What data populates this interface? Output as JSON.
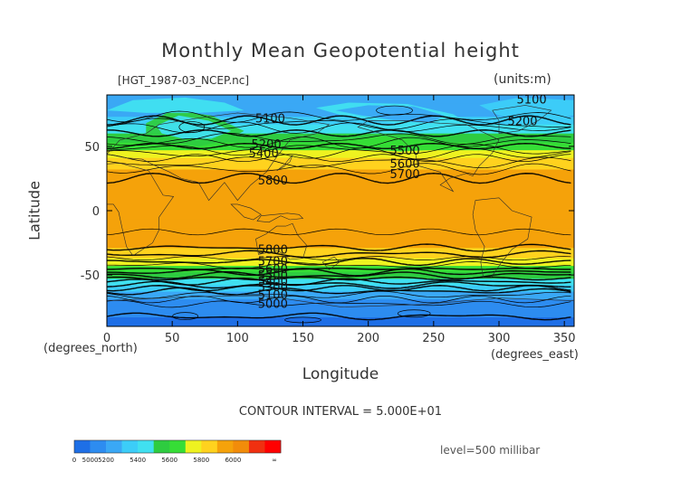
{
  "chart_data": {
    "type": "heatmap",
    "title": "Monthly Mean Geopotential height",
    "subtitle": "[HGT_1987-03_NCEP.nc]",
    "units": "(units:m)",
    "xlabel": "Longitude",
    "ylabel": "Latitude",
    "x_unit": "(degrees_east)",
    "y_unit": "(degrees_north)",
    "xlim": [
      0,
      357.5
    ],
    "ylim": [
      -90,
      90
    ],
    "xticks": [
      0,
      50,
      100,
      150,
      200,
      250,
      300,
      350
    ],
    "yticks": [
      50,
      0,
      -50
    ],
    "footer": "CONTOUR INTERVAL = 5.000E+01",
    "level": "level=500 millibar",
    "colorbar": {
      "tick_labels": [
        "0",
        "5000",
        "5200",
        "5400",
        "5600",
        "5800",
        "6000",
        "∞"
      ],
      "bands": [
        {
          "from": 0,
          "to": 5000,
          "color": "#1e6fe6"
        },
        {
          "from": 5000,
          "to": 5100,
          "color": "#2d8cf0"
        },
        {
          "from": 5100,
          "to": 5200,
          "color": "#3aa8f5"
        },
        {
          "from": 5200,
          "to": 5300,
          "color": "#3ccdf8"
        },
        {
          "from": 5300,
          "to": 5400,
          "color": "#40e0f0"
        },
        {
          "from": 5400,
          "to": 5500,
          "color": "#2ecc40"
        },
        {
          "from": 5500,
          "to": 5600,
          "color": "#36dd36"
        },
        {
          "from": 5600,
          "to": 5700,
          "color": "#eef220"
        },
        {
          "from": 5700,
          "to": 5800,
          "color": "#ffd21e"
        },
        {
          "from": 5800,
          "to": 5900,
          "color": "#f5a20a"
        },
        {
          "from": 5900,
          "to": 6000,
          "color": "#f28c0a"
        },
        {
          "from": 6000,
          "to": 6100,
          "color": "#f03010"
        },
        {
          "from": 6100,
          "to": 9999,
          "color": "#ff0000"
        }
      ]
    },
    "zonal_profile": [
      {
        "lat": 90,
        "value": 5180
      },
      {
        "lat": 75,
        "value": 5160
      },
      {
        "lat": 65,
        "value": 5340
      },
      {
        "lat": 55,
        "value": 5460
      },
      {
        "lat": 45,
        "value": 5640
      },
      {
        "lat": 35,
        "value": 5780
      },
      {
        "lat": 25,
        "value": 5850
      },
      {
        "lat": 0,
        "value": 5870
      },
      {
        "lat": -25,
        "value": 5840
      },
      {
        "lat": -35,
        "value": 5740
      },
      {
        "lat": -45,
        "value": 5560
      },
      {
        "lat": -55,
        "value": 5360
      },
      {
        "lat": -65,
        "value": 5160
      },
      {
        "lat": -75,
        "value": 5020
      },
      {
        "lat": -90,
        "value": 4980
      }
    ],
    "contour_labels": [
      {
        "text": "5100",
        "lon": 125,
        "lat": 72
      },
      {
        "text": "5100",
        "lon": 325,
        "lat": 87
      },
      {
        "text": "5200",
        "lon": 318,
        "lat": 70
      },
      {
        "text": "5200",
        "lon": 122,
        "lat": 52
      },
      {
        "text": "5400",
        "lon": 120,
        "lat": 45
      },
      {
        "text": "5500",
        "lon": 228,
        "lat": 47
      },
      {
        "text": "5600",
        "lon": 228,
        "lat": 37
      },
      {
        "text": "5700",
        "lon": 228,
        "lat": 29
      },
      {
        "text": "5800",
        "lon": 127,
        "lat": 24
      },
      {
        "text": "5800",
        "lon": 127,
        "lat": -30
      },
      {
        "text": "5700",
        "lon": 127,
        "lat": -39
      },
      {
        "text": "5600",
        "lon": 127,
        "lat": -45
      },
      {
        "text": "5500",
        "lon": 127,
        "lat": -50
      },
      {
        "text": "5400",
        "lon": 127,
        "lat": -55
      },
      {
        "text": "5300",
        "lon": 127,
        "lat": -59
      },
      {
        "text": "5100",
        "lon": 127,
        "lat": -65
      },
      {
        "text": "5000",
        "lon": 127,
        "lat": -72
      }
    ]
  }
}
